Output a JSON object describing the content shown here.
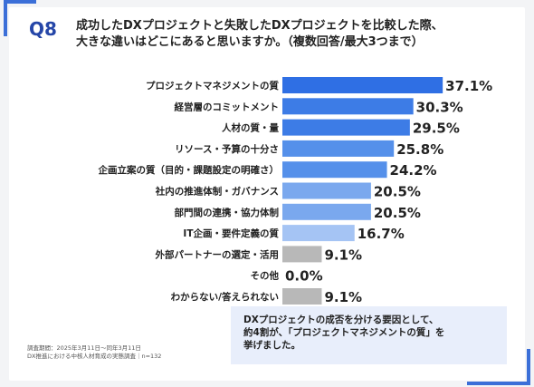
{
  "question": {
    "number": "Q8",
    "line1": "成功したDXプロジェクトと失敗したDXプロジェクトを比較した際、",
    "line2": "大きな違いはどこにあると思いますか。（複数回答/最大3つまで）"
  },
  "chart_data": {
    "type": "bar",
    "orientation": "horizontal",
    "categories": [
      "プロジェクトマネジメントの質",
      "経営層のコミットメント",
      "人材の質・量",
      "リソース・予算の十分さ",
      "企画立案の質（目的・課題設定の明確さ）",
      "社内の推進体制・ガバナンス",
      "部門間の連携・協力体制",
      "IT企画・要件定義の質",
      "外部パートナーの選定・活用",
      "その他",
      "わからない/答えられない"
    ],
    "values": [
      37.1,
      30.3,
      29.5,
      25.8,
      24.2,
      20.5,
      20.5,
      16.7,
      9.1,
      0.0,
      9.1
    ],
    "value_labels": [
      "37.1%",
      "30.3%",
      "29.5%",
      "25.8%",
      "24.2%",
      "20.5%",
      "20.5%",
      "16.7%",
      "9.1%",
      "0.0%",
      "9.1%"
    ],
    "xlim": [
      0,
      40
    ],
    "grid": false,
    "colors": [
      "#2f6fe4",
      "#3d7ce6",
      "#3d7ce6",
      "#5590ea",
      "#5590ea",
      "#7aa8ee",
      "#7aa8ee",
      "#a5c4f4",
      "#b8b8b8",
      "#b8b8b8",
      "#b8b8b8"
    ]
  },
  "summary": {
    "line1": "DXプロジェクトの成否を分ける要因として、",
    "line2": "約4割が、「プロジェクトマネジメントの質」を",
    "line3": "挙げました。"
  },
  "footnote": {
    "line1": "調査期間：2025年3月11日～同年3月11日",
    "line2": "DX推進における中核人材育成の実態調査｜n=132"
  }
}
